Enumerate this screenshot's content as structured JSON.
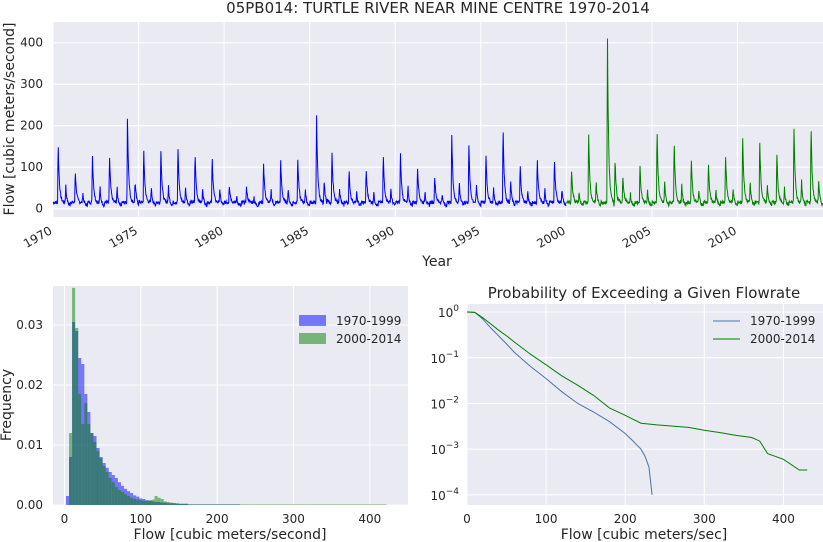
{
  "chart_data": [
    {
      "type": "line",
      "title": "05PB014: TURTLE RIVER NEAR MINE CENTRE 1970-2014",
      "xlabel": "Year",
      "ylabel": "Flow [cubic meters/second]",
      "xlim": [
        1970,
        2015
      ],
      "ylim": [
        -20,
        450
      ],
      "xticks": [
        1970,
        1975,
        1980,
        1985,
        1990,
        1995,
        2000,
        2005,
        2010
      ],
      "yticks": [
        0,
        100,
        200,
        300,
        400
      ],
      "grid": true,
      "colors": {
        "1970-1999": "#0000ff",
        "2000-2014": "#008000"
      },
      "annual_peaks": {
        "x": [
          1970.3,
          1971.3,
          1972.3,
          1973.3,
          1974.35,
          1975.3,
          1976.3,
          1977.3,
          1978.3,
          1979.3,
          1980.3,
          1981.3,
          1982.3,
          1983.3,
          1984.3,
          1985.4,
          1986.3,
          1987.3,
          1988.3,
          1989.3,
          1990.3,
          1991.3,
          1992.3,
          1993.3,
          1994.3,
          1995.3,
          1996.3,
          1997.3,
          1998.3,
          1999.3,
          2000.3,
          2001.3,
          2002.4,
          2003.3,
          2004.3,
          2005.3,
          2006.3,
          2007.3,
          2008.3,
          2009.3,
          2010.3,
          2011.3,
          2012.3,
          2013.3,
          2014.3
        ],
        "y": [
          162,
          95,
          140,
          135,
          228,
          150,
          152,
          155,
          140,
          130,
          60,
          55,
          120,
          125,
          130,
          234,
          145,
          95,
          100,
          135,
          145,
          110,
          85,
          195,
          165,
          140,
          205,
          110,
          125,
          125,
          100,
          195,
          430,
          85,
          110,
          200,
          165,
          125,
          115,
          140,
          190,
          180,
          140,
          210,
          210
        ]
      },
      "base_flow": 15
    },
    {
      "type": "histogram",
      "title": "",
      "xlabel": "Flow [cubic meters/second]",
      "ylabel": "Frequency",
      "xlim": [
        -15,
        450
      ],
      "ylim": [
        0,
        0.0365
      ],
      "xticks": [
        0,
        100,
        200,
        300,
        400
      ],
      "yticks": [
        0.0,
        0.01,
        0.02,
        0.03
      ],
      "ytick_labels": [
        "0.00",
        "0.01",
        "0.02",
        "0.03"
      ],
      "legend": "top-right",
      "bin_width": 4,
      "series": [
        {
          "name": "1970-1999",
          "color": "#0000ff",
          "alpha": 0.5,
          "start": 2,
          "values": [
            0.0015,
            0.008,
            0.0305,
            0.029,
            0.0245,
            0.0235,
            0.0185,
            0.0155,
            0.012,
            0.0115,
            0.0095,
            0.008,
            0.007,
            0.0062,
            0.0055,
            0.005,
            0.0045,
            0.0038,
            0.0032,
            0.0027,
            0.0023,
            0.002,
            0.0016,
            0.0014,
            0.0011,
            0.001,
            0.0008,
            0.0007,
            0.0006,
            0.0005,
            0.0005,
            0.0004,
            0.0004,
            0.0003,
            0.0003,
            0.0003,
            0.0002,
            0.0002,
            0.0002,
            0.0002,
            0.0001,
            0.0001,
            0.0001,
            0.0001,
            0.0001,
            0.0001,
            0.0001,
            0.0001,
            0.0001,
            0.0001,
            0.0001,
            0.0001,
            0.0001,
            0.0001,
            0.0001,
            0.0001,
            0.0001
          ]
        },
        {
          "name": "2000-2014",
          "color": "#008000",
          "alpha": 0.5,
          "start": 6,
          "values": [
            0.012,
            0.0362,
            0.0295,
            0.0185,
            0.0135,
            0.017,
            0.0135,
            0.012,
            0.0105,
            0.009,
            0.0078,
            0.0065,
            0.0055,
            0.0045,
            0.0038,
            0.003,
            0.0025,
            0.0022,
            0.0018,
            0.0015,
            0.0012,
            0.001,
            0.0009,
            0.0008,
            0.0007,
            0.0007,
            0.0008,
            0.0009,
            0.0015,
            0.0012,
            0.001,
            0.0006,
            0.0005,
            0.0004,
            0.0003,
            0.0003,
            0.0002,
            0.0002,
            0.0002,
            0.0001,
            0.0001,
            0.0001,
            0.0001,
            0.0001,
            0.0001,
            0.0001,
            0.0001,
            0.0001,
            0.0001,
            0.0001,
            0.0001,
            0.0001,
            0.0001,
            0.0001,
            0.0001,
            0.0001,
            0.0001,
            0.0001,
            0.0001,
            0.0001,
            0.0001,
            0.0001,
            0.0001,
            0.0001,
            0.0001,
            0.0001,
            0.0001,
            0.0001,
            0.0001,
            0.0001,
            0.0001,
            0.0001,
            0.0001,
            0.0001,
            0.0001,
            0.0001,
            0.0001,
            0.0001,
            0.0001,
            0.0001,
            0.0001,
            0.0001,
            0.0001,
            0.0001,
            0.0001,
            0.0001,
            0.0001,
            0.0001,
            0.0001,
            0.0001,
            0.0001,
            0.0001,
            0.0001,
            0.0001,
            0.0001,
            0.0001,
            0.0001,
            0.0001,
            0.0001,
            0.0001,
            0.0001,
            0.0001,
            0.0001,
            0.0001
          ]
        }
      ]
    },
    {
      "type": "line",
      "title": "Probability of Exceeding a Given Flowrate",
      "xlabel": "Flow [cubic meters/sec]",
      "ylabel": "",
      "yscale": "log",
      "xlim": [
        0,
        450
      ],
      "ylim": [
        6e-05,
        1.5
      ],
      "xticks": [
        0,
        100,
        200,
        300,
        400
      ],
      "yticks": [
        1,
        0.1,
        0.01,
        0.001,
        0.0001
      ],
      "ytick_labels": [
        {
          "base": "10",
          "exp": "0"
        },
        {
          "base": "10",
          "exp": "−1"
        },
        {
          "base": "10",
          "exp": "−2"
        },
        {
          "base": "10",
          "exp": "−3"
        },
        {
          "base": "10",
          "exp": "−4"
        }
      ],
      "legend": "top-right",
      "series": [
        {
          "name": "1970-1999",
          "color": "#4c72b0",
          "x": [
            0,
            10,
            20,
            30,
            40,
            50,
            60,
            80,
            100,
            120,
            140,
            160,
            180,
            200,
            210,
            220,
            225,
            230,
            232,
            234
          ],
          "y": [
            1,
            0.98,
            0.7,
            0.45,
            0.3,
            0.2,
            0.13,
            0.065,
            0.035,
            0.018,
            0.01,
            0.0065,
            0.004,
            0.0022,
            0.0015,
            0.001,
            0.0007,
            0.0004,
            0.0002,
            0.0001
          ]
        },
        {
          "name": "2000-2014",
          "color": "#008000",
          "x": [
            0,
            10,
            20,
            30,
            40,
            50,
            60,
            80,
            100,
            120,
            140,
            160,
            180,
            200,
            210,
            220,
            240,
            280,
            300,
            320,
            340,
            360,
            370,
            380,
            400,
            420,
            430
          ],
          "y": [
            1,
            0.98,
            0.75,
            0.55,
            0.4,
            0.3,
            0.22,
            0.12,
            0.07,
            0.04,
            0.025,
            0.015,
            0.008,
            0.0055,
            0.0045,
            0.0037,
            0.0034,
            0.003,
            0.0026,
            0.0023,
            0.002,
            0.0018,
            0.0015,
            0.0008,
            0.0006,
            0.00035,
            0.00035
          ]
        }
      ]
    }
  ]
}
